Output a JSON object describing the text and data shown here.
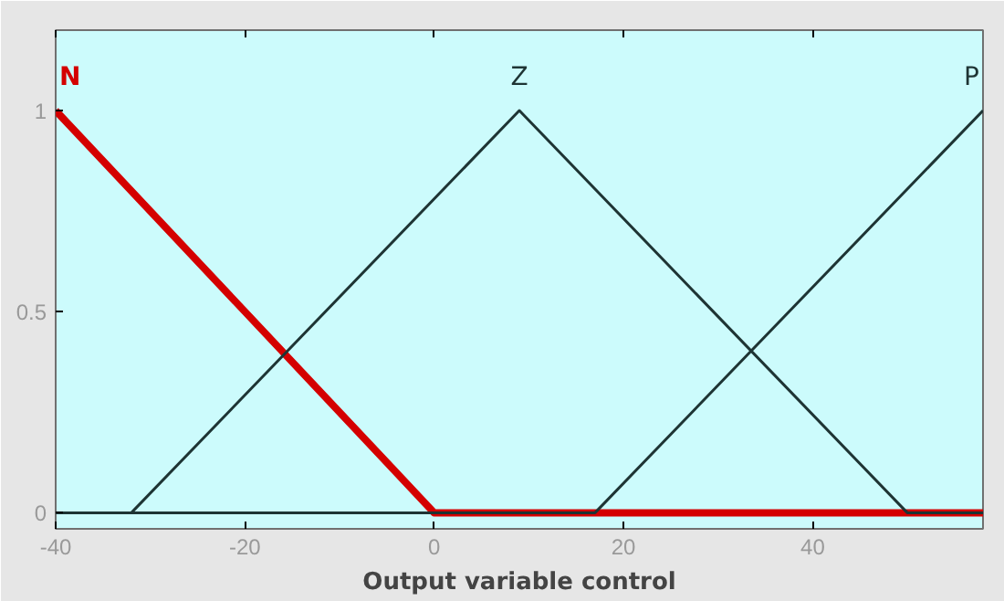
{
  "chart_data": {
    "type": "line",
    "xlabel": "Output variable control",
    "xlim": [
      -40,
      58
    ],
    "ylim": [
      -0.04,
      1.2
    ],
    "xticks": [
      -40,
      -20,
      0,
      20,
      40
    ],
    "yticks": [
      0,
      0.5,
      1
    ],
    "grid": false,
    "marker": "none",
    "line_style": "solid",
    "series": [
      {
        "name": "N",
        "color": "#d40000",
        "x": [
          -40,
          0,
          58
        ],
        "values": [
          1,
          0,
          0
        ]
      },
      {
        "name": "Z",
        "color": "#1e3434",
        "x": [
          -40,
          -32,
          9,
          50,
          58
        ],
        "values": [
          0,
          0,
          1,
          0,
          0
        ]
      },
      {
        "name": "P",
        "color": "#1e3434",
        "x": [
          -40,
          17,
          58
        ],
        "values": [
          0,
          0,
          1
        ]
      }
    ]
  }
}
